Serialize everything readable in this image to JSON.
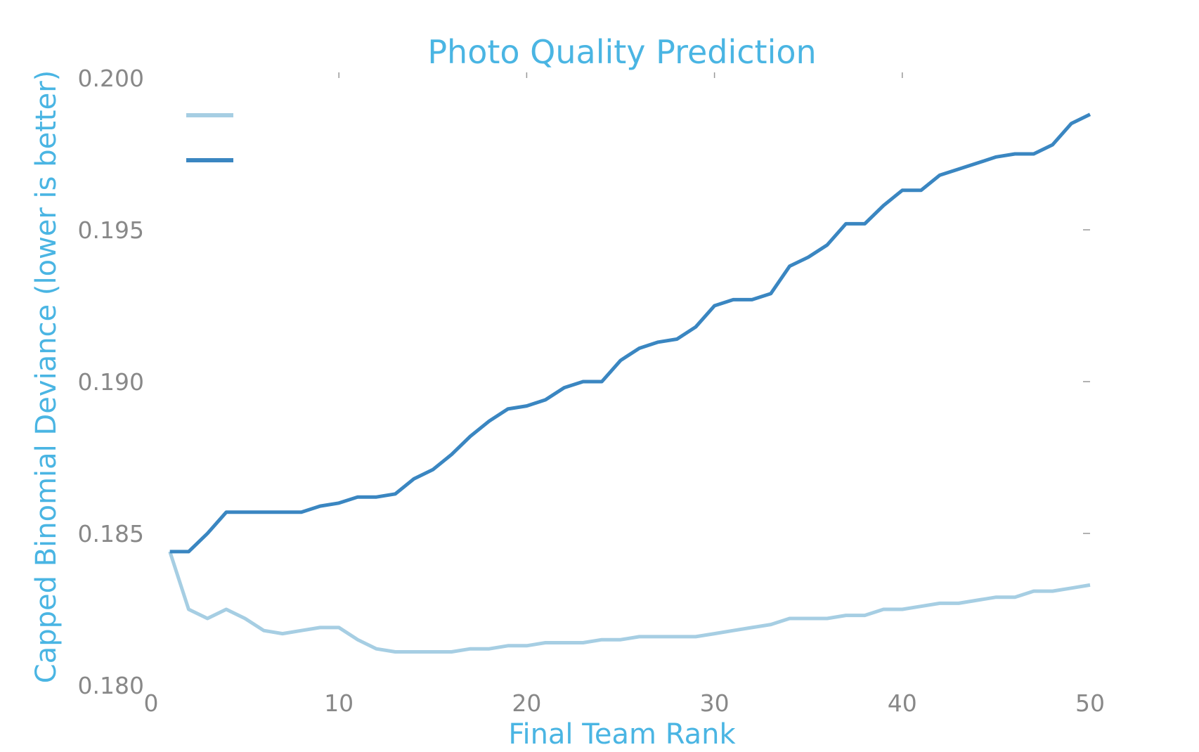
{
  "chart_data": {
    "type": "line",
    "title": "Photo Quality Prediction",
    "xlabel": "Final Team Rank",
    "ylabel": "Capped Binomial Deviance (lower is better)",
    "xlim": [
      0,
      50
    ],
    "ylim": [
      0.18,
      0.2
    ],
    "x_ticks": [
      "0",
      "10",
      "20",
      "30",
      "40",
      "50"
    ],
    "y_ticks": [
      "0.180",
      "0.185",
      "0.190",
      "0.195",
      "0.200"
    ],
    "grid": false,
    "legend_position": "top-left",
    "x": [
      1,
      2,
      3,
      4,
      5,
      6,
      7,
      8,
      9,
      10,
      11,
      12,
      13,
      14,
      15,
      16,
      17,
      18,
      19,
      20,
      21,
      22,
      23,
      24,
      25,
      26,
      27,
      28,
      29,
      30,
      31,
      32,
      33,
      34,
      35,
      36,
      37,
      38,
      39,
      40,
      41,
      42,
      43,
      44,
      45,
      46,
      47,
      48,
      49,
      50
    ],
    "series": [
      {
        "color": "#a6cee3",
        "values": [
          0.1844,
          0.1825,
          0.1822,
          0.1825,
          0.1822,
          0.1818,
          0.1817,
          0.1818,
          0.1819,
          0.1819,
          0.1815,
          0.1812,
          0.1811,
          0.1811,
          0.1811,
          0.1811,
          0.1812,
          0.1812,
          0.1813,
          0.1813,
          0.1814,
          0.1814,
          0.1814,
          0.1815,
          0.1815,
          0.1816,
          0.1816,
          0.1816,
          0.1816,
          0.1817,
          0.1818,
          0.1819,
          0.182,
          0.1822,
          0.1822,
          0.1822,
          0.1823,
          0.1823,
          0.1825,
          0.1825,
          0.1826,
          0.1827,
          0.1827,
          0.1828,
          0.1829,
          0.1829,
          0.1831,
          0.1831,
          0.1832,
          0.1833
        ]
      },
      {
        "color": "#3a86c1",
        "values": [
          0.1844,
          0.1844,
          0.185,
          0.1857,
          0.1857,
          0.1857,
          0.1857,
          0.1857,
          0.1859,
          0.186,
          0.1862,
          0.1862,
          0.1863,
          0.1868,
          0.1871,
          0.1876,
          0.1882,
          0.1887,
          0.1891,
          0.1892,
          0.1894,
          0.1898,
          0.19,
          0.19,
          0.1907,
          0.1911,
          0.1913,
          0.1914,
          0.1918,
          0.1925,
          0.1927,
          0.1927,
          0.1929,
          0.1938,
          0.1941,
          0.1945,
          0.1952,
          0.1952,
          0.1958,
          0.1963,
          0.1963,
          0.1968,
          0.197,
          0.1972,
          0.1974,
          0.1975,
          0.1975,
          0.1978,
          0.1985,
          0.1988
        ]
      }
    ]
  }
}
